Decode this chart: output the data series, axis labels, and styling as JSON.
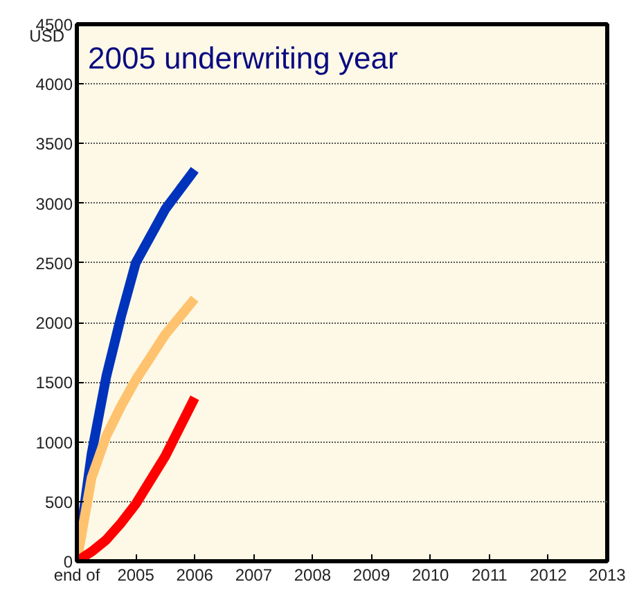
{
  "chart_data": {
    "type": "line",
    "title": "2005 underwriting year",
    "ylabel": "USD",
    "x": [
      2004,
      2004.25,
      2004.5,
      2004.75,
      2005,
      2005.5,
      2006
    ],
    "series": [
      {
        "color": "#0033bb",
        "values": [
          0,
          900,
          1550,
          2050,
          2500,
          2950,
          3280
        ]
      },
      {
        "color": "#ffc26e",
        "values": [
          0,
          700,
          1050,
          1300,
          1520,
          1900,
          2200
        ]
      },
      {
        "color": "#ff0000",
        "values": [
          0,
          80,
          180,
          320,
          480,
          880,
          1370
        ]
      }
    ],
    "xlim": [
      2004,
      2013
    ],
    "xticks": [
      {
        "value": 2004,
        "label": "end of"
      },
      2005,
      2006,
      2007,
      2008,
      2009,
      2010,
      2011,
      2012,
      2013
    ],
    "ylim": [
      0,
      4500
    ],
    "yticks": [
      0,
      500,
      1000,
      1500,
      2000,
      2500,
      3000,
      3500,
      4000,
      4500
    ],
    "grid": "y",
    "marker": "none",
    "line_style": "solid"
  }
}
